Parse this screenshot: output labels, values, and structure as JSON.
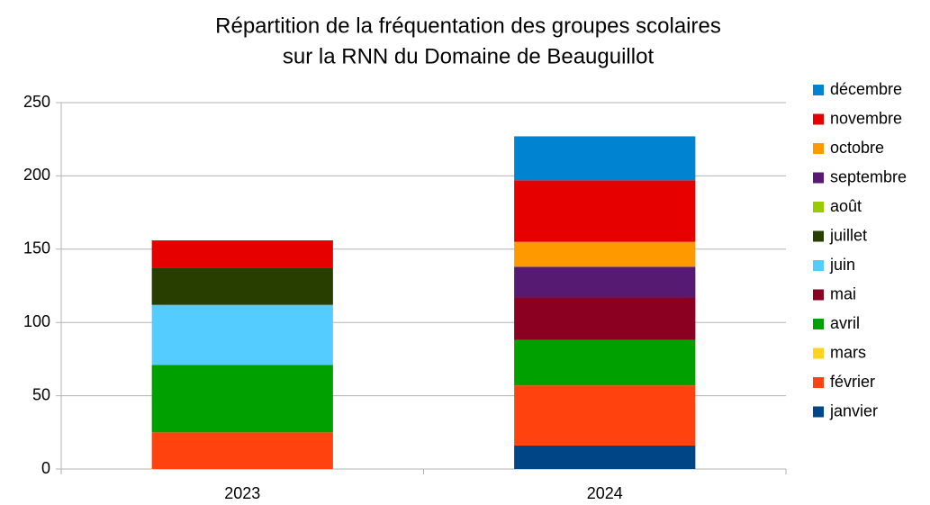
{
  "chart_data": {
    "type": "stacked_bar",
    "title": [
      "Répartition de la fréquentation des groupes scolaires",
      "sur la RNN du Domaine de Beauguillot"
    ],
    "categories": [
      "2023",
      "2024"
    ],
    "series": [
      {
        "name": "janvier",
        "color": "#004586",
        "values": [
          0,
          16
        ]
      },
      {
        "name": "février",
        "color": "#ff420e",
        "values": [
          25,
          41
        ]
      },
      {
        "name": "mars",
        "color": "#ffd320",
        "values": [
          0,
          0
        ]
      },
      {
        "name": "avril",
        "color": "#00a000",
        "values": [
          46,
          31
        ]
      },
      {
        "name": "mai",
        "color": "#8b0020",
        "values": [
          0,
          29
        ]
      },
      {
        "name": "juin",
        "color": "#55ccff",
        "values": [
          41,
          0
        ]
      },
      {
        "name": "juillet",
        "color": "#283e00",
        "values": [
          25,
          0
        ]
      },
      {
        "name": "août",
        "color": "#99cc00",
        "values": [
          0,
          0
        ]
      },
      {
        "name": "septembre",
        "color": "#561a72",
        "values": [
          0,
          21
        ]
      },
      {
        "name": "octobre",
        "color": "#ff9900",
        "values": [
          0,
          17
        ]
      },
      {
        "name": "novembre",
        "color": "#e60000",
        "values": [
          19,
          42
        ]
      },
      {
        "name": "décembre",
        "color": "#0084d1",
        "values": [
          0,
          30
        ]
      }
    ],
    "ylim": [
      0,
      250
    ],
    "yticks": [
      0,
      50,
      100,
      150,
      200,
      250
    ],
    "grid": true,
    "legend": "right"
  }
}
